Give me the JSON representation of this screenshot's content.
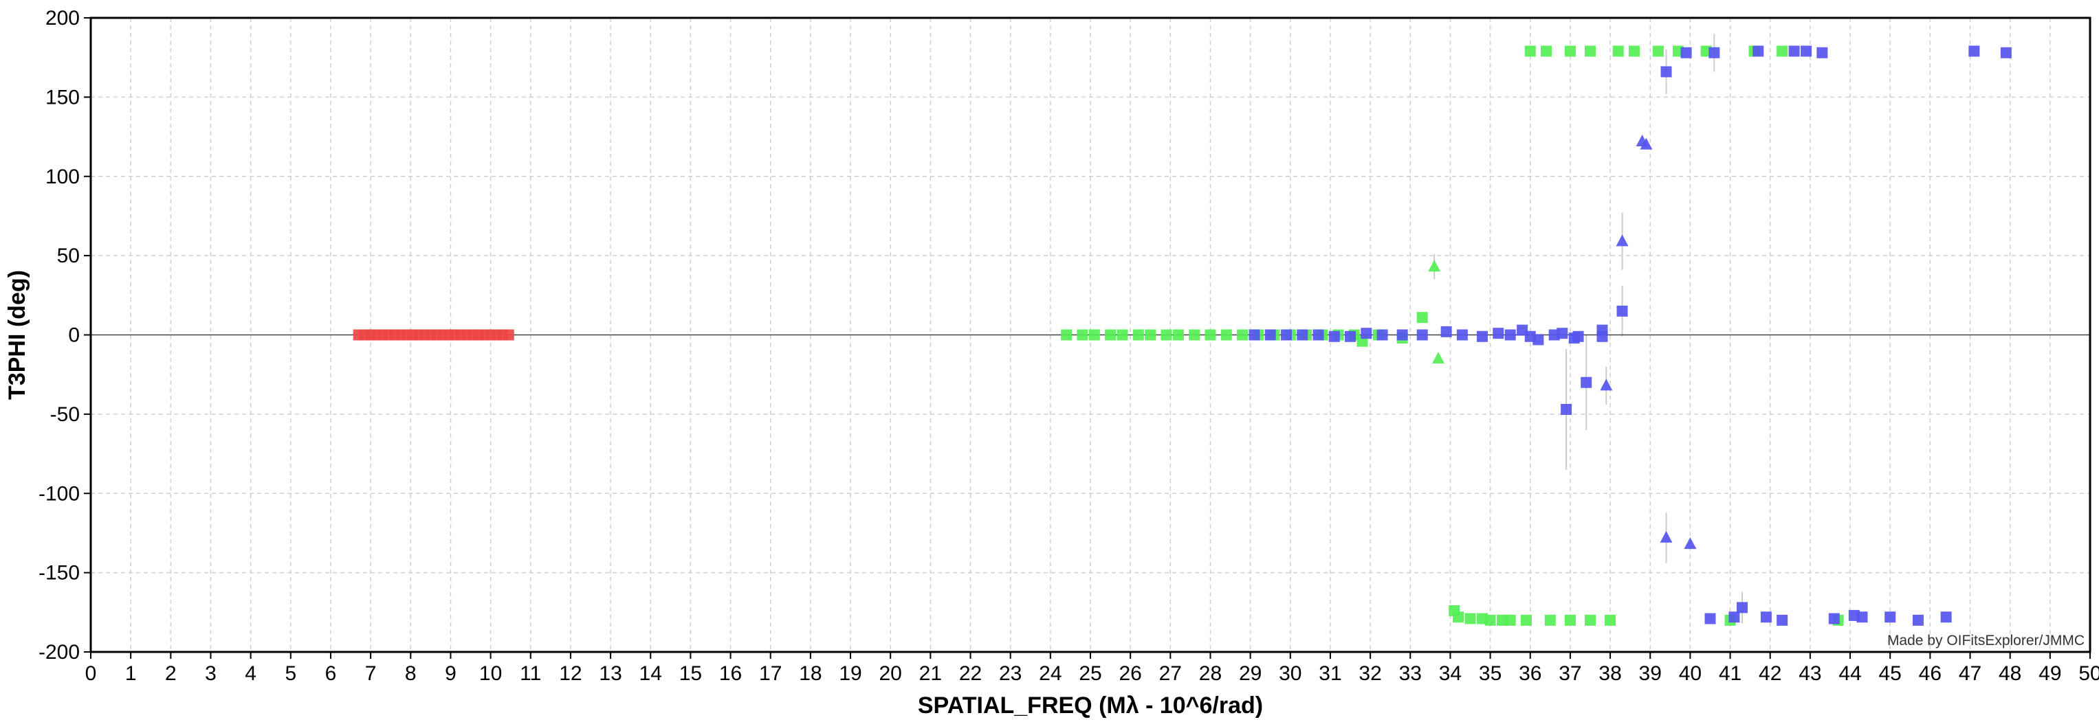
{
  "chart_data": {
    "type": "scatter",
    "title": "",
    "xlabel": "SPATIAL_FREQ (Mλ - 10^6/rad)",
    "ylabel": "T3PHI (deg)",
    "xlim": [
      0,
      50
    ],
    "ylim": [
      -200,
      200
    ],
    "xticks": [
      0,
      1,
      2,
      3,
      4,
      5,
      6,
      7,
      8,
      9,
      10,
      11,
      12,
      13,
      14,
      15,
      16,
      17,
      18,
      19,
      20,
      21,
      22,
      23,
      24,
      25,
      26,
      27,
      28,
      29,
      30,
      31,
      32,
      33,
      34,
      35,
      36,
      37,
      38,
      39,
      40,
      41,
      42,
      43,
      44,
      45,
      46,
      47,
      48,
      49,
      50
    ],
    "yticks": [
      200,
      150,
      100,
      50,
      0,
      -50,
      -100,
      -150,
      -200
    ],
    "grid": true,
    "zero_line": true,
    "legend": "none",
    "credit": "Made by OIFitsExplorer/JMMC",
    "series": [
      {
        "color": "#ee4444",
        "marker": "square",
        "points": [
          [
            6.7,
            0
          ],
          [
            6.85,
            0
          ],
          [
            7.0,
            0
          ],
          [
            7.15,
            0
          ],
          [
            7.3,
            0
          ],
          [
            7.45,
            0
          ],
          [
            7.6,
            0
          ],
          [
            7.75,
            0
          ],
          [
            7.9,
            0
          ],
          [
            8.05,
            0
          ],
          [
            8.2,
            0
          ],
          [
            8.35,
            0
          ],
          [
            8.5,
            0
          ],
          [
            8.65,
            0
          ],
          [
            8.8,
            0
          ],
          [
            8.95,
            0
          ],
          [
            9.1,
            0
          ],
          [
            9.25,
            0
          ],
          [
            9.4,
            0
          ],
          [
            9.55,
            0
          ],
          [
            9.7,
            0
          ],
          [
            9.85,
            0
          ],
          [
            10.0,
            0
          ],
          [
            10.15,
            0
          ],
          [
            10.3,
            0
          ],
          [
            10.45,
            0
          ]
        ]
      },
      {
        "color": "#55ee55",
        "marker": "square",
        "points": [
          [
            24.4,
            0
          ],
          [
            24.8,
            0
          ],
          [
            25.1,
            0
          ],
          [
            25.5,
            0
          ],
          [
            25.8,
            0
          ],
          [
            26.2,
            0
          ],
          [
            26.5,
            0
          ],
          [
            26.9,
            0
          ],
          [
            27.2,
            0
          ],
          [
            27.6,
            0
          ],
          [
            28.0,
            0
          ],
          [
            28.4,
            0
          ],
          [
            28.8,
            0
          ],
          [
            29.2,
            0
          ],
          [
            29.6,
            0
          ],
          [
            30.0,
            0
          ],
          [
            30.4,
            0
          ],
          [
            30.8,
            0
          ],
          [
            31.2,
            0
          ],
          [
            31.6,
            0
          ],
          [
            31.8,
            -4
          ],
          [
            32.2,
            0
          ],
          [
            32.8,
            -2
          ],
          [
            33.3,
            11
          ],
          [
            34.1,
            -174
          ],
          [
            34.2,
            -178
          ],
          [
            34.5,
            -179
          ],
          [
            34.8,
            -179
          ],
          [
            35.0,
            -180
          ],
          [
            35.3,
            -180
          ],
          [
            35.5,
            -180
          ],
          [
            35.9,
            -180
          ],
          [
            36.0,
            179
          ],
          [
            36.4,
            179
          ],
          [
            36.5,
            -180
          ],
          [
            37.0,
            179
          ],
          [
            37.0,
            -180
          ],
          [
            37.5,
            179
          ],
          [
            37.5,
            -180
          ],
          [
            38.0,
            -180
          ],
          [
            38.2,
            179
          ],
          [
            38.6,
            179
          ],
          [
            39.2,
            179
          ],
          [
            39.7,
            179
          ],
          [
            40.4,
            179
          ],
          [
            41.0,
            -180
          ],
          [
            41.6,
            179
          ],
          [
            42.3,
            179
          ],
          [
            43.7,
            -180
          ]
        ],
        "triangles": [
          [
            33.6,
            43
          ],
          [
            33.7,
            -15
          ]
        ]
      },
      {
        "color": "#5555ee",
        "marker": "square",
        "points": [
          [
            29.1,
            0
          ],
          [
            29.5,
            0
          ],
          [
            29.9,
            0
          ],
          [
            30.3,
            0
          ],
          [
            30.7,
            0
          ],
          [
            31.1,
            -1
          ],
          [
            31.5,
            -1
          ],
          [
            31.9,
            1
          ],
          [
            32.3,
            0
          ],
          [
            32.8,
            0
          ],
          [
            33.3,
            0
          ],
          [
            33.9,
            2
          ],
          [
            34.3,
            0
          ],
          [
            34.8,
            -1
          ],
          [
            35.2,
            1
          ],
          [
            35.5,
            0
          ],
          [
            35.8,
            3
          ],
          [
            36.0,
            -1
          ],
          [
            36.2,
            -3
          ],
          [
            36.6,
            0
          ],
          [
            36.8,
            1
          ],
          [
            36.9,
            -47
          ],
          [
            37.1,
            -2
          ],
          [
            37.2,
            -1
          ],
          [
            37.4,
            -30
          ],
          [
            37.8,
            3
          ],
          [
            37.8,
            -1
          ],
          [
            38.3,
            15
          ],
          [
            39.4,
            166
          ],
          [
            39.9,
            178
          ],
          [
            40.6,
            178
          ],
          [
            41.7,
            179
          ],
          [
            42.6,
            179
          ],
          [
            42.9,
            179
          ],
          [
            43.3,
            178
          ],
          [
            47.1,
            179
          ],
          [
            47.9,
            178
          ],
          [
            40.5,
            -179
          ],
          [
            41.1,
            -178
          ],
          [
            41.3,
            -172
          ],
          [
            41.9,
            -178
          ],
          [
            42.3,
            -180
          ],
          [
            43.6,
            -179
          ],
          [
            44.1,
            -177
          ],
          [
            44.3,
            -178
          ],
          [
            45.0,
            -178
          ],
          [
            45.7,
            -180
          ],
          [
            46.4,
            -178
          ]
        ],
        "triangles": [
          [
            38.8,
            122
          ],
          [
            38.9,
            120
          ],
          [
            38.3,
            59
          ],
          [
            37.9,
            -32
          ],
          [
            39.4,
            -128
          ],
          [
            40.0,
            -132
          ]
        ]
      }
    ]
  }
}
